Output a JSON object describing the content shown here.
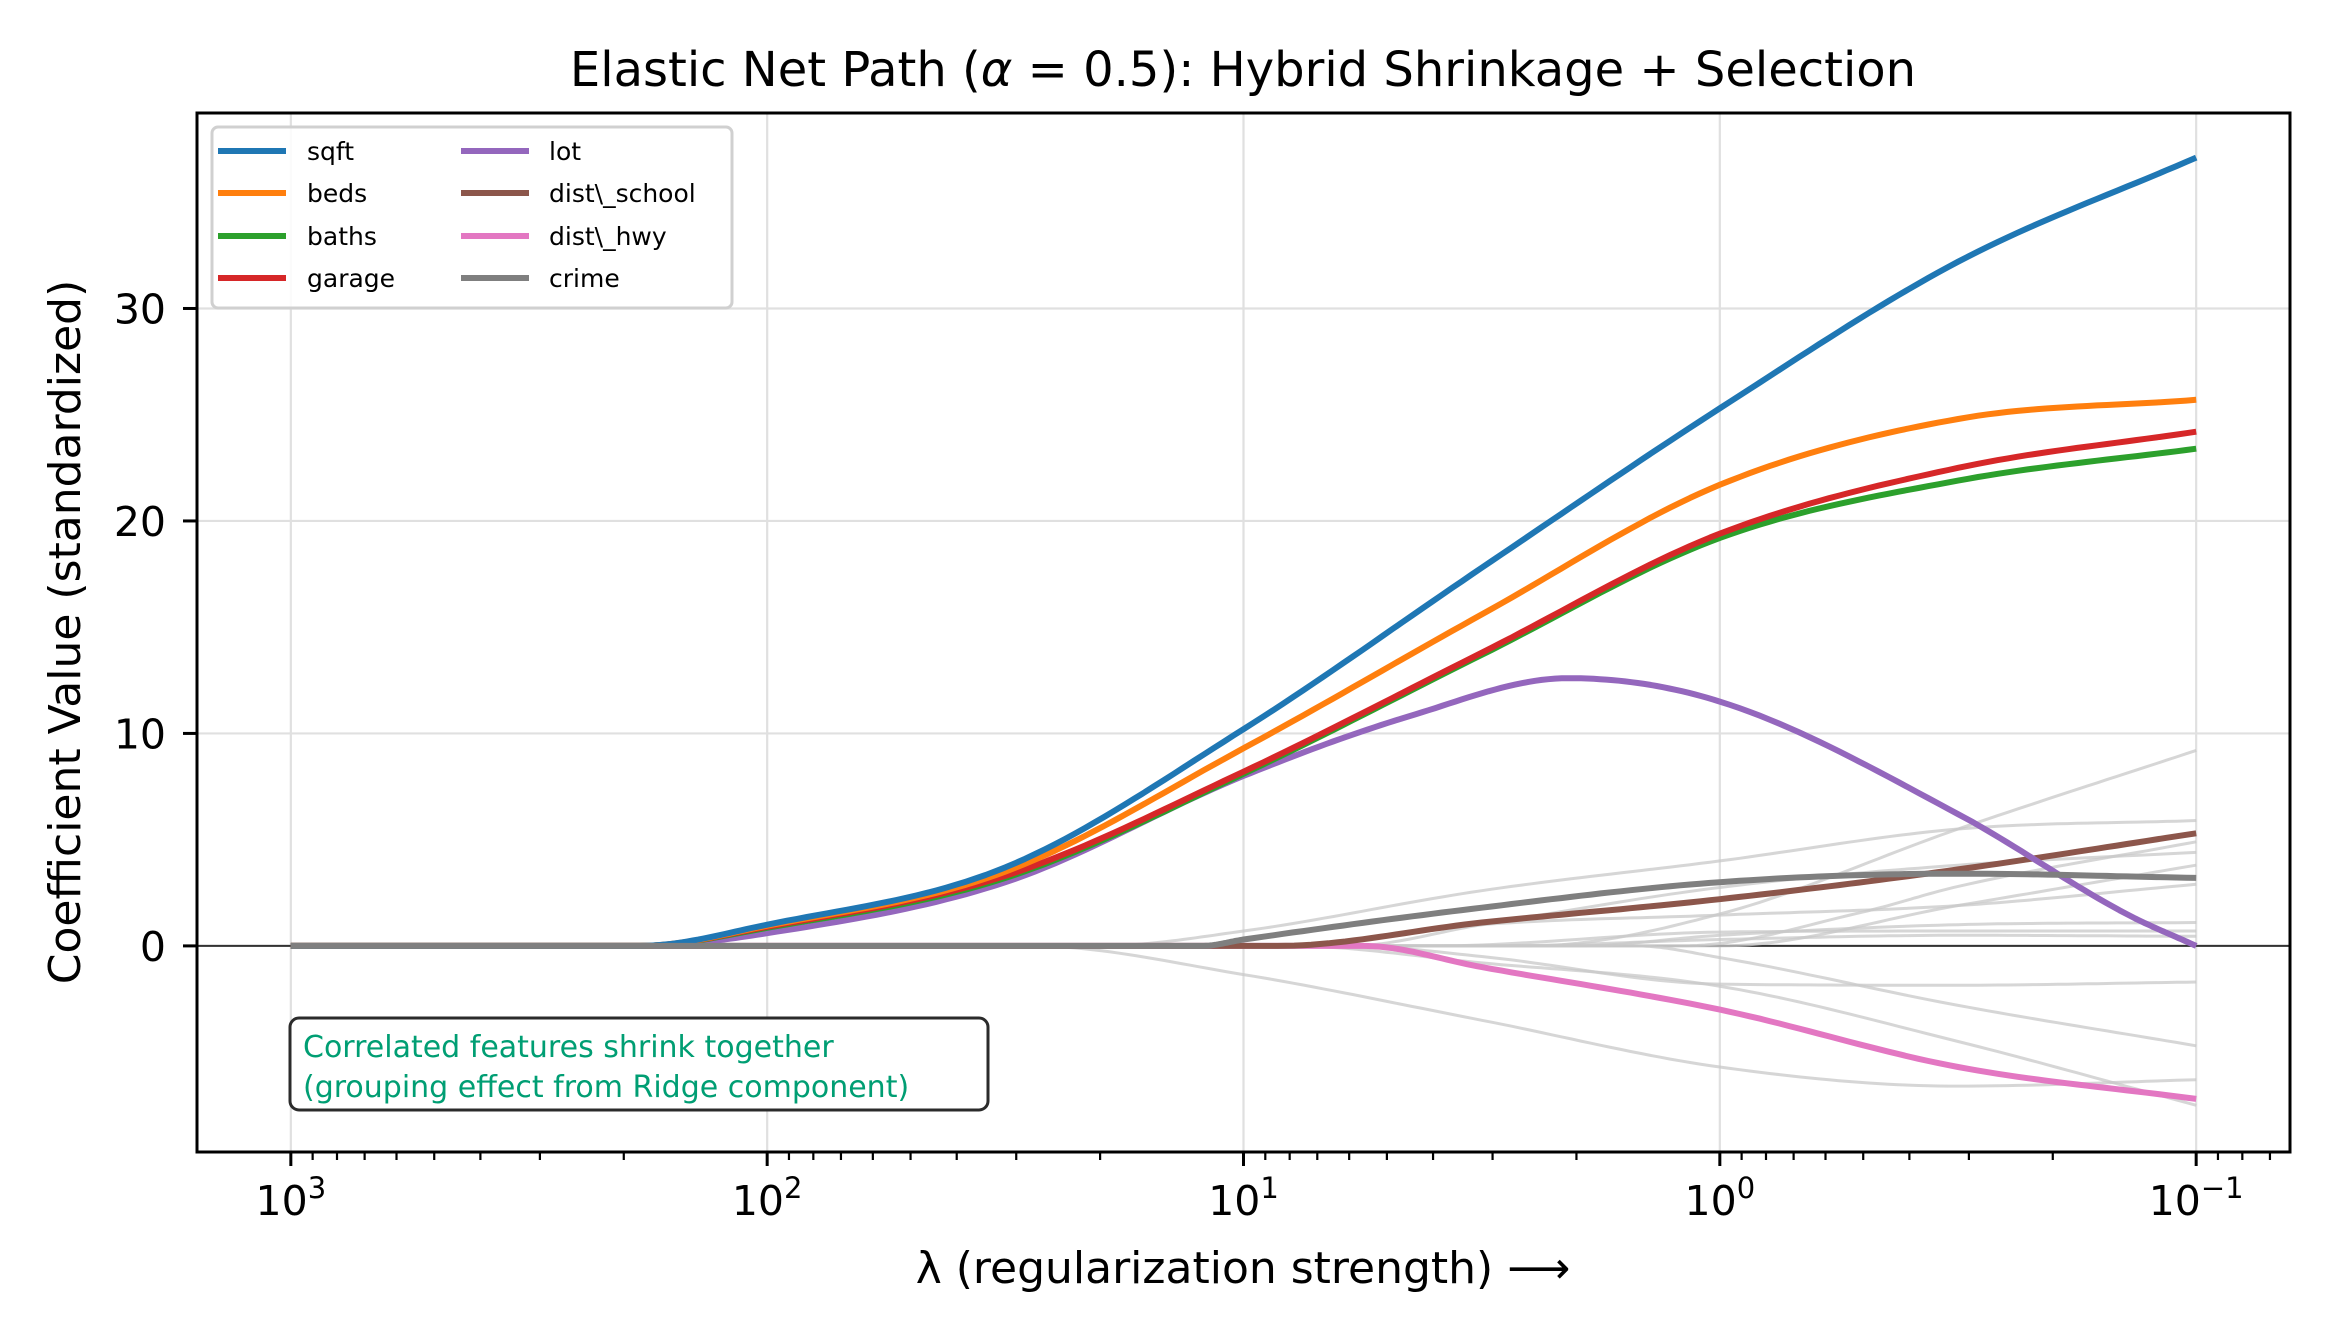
{
  "chart_data": {
    "type": "line",
    "title": "Elastic Net Path (α = 0.5): Hybrid Shrinkage + Selection",
    "title_parts": {
      "before": "Elastic Net Path (",
      "alpha": "α",
      "equals": " = 0.5",
      "after": "): Hybrid Shrinkage + Selection"
    },
    "xlabel": "λ (regularization strength)  ⟶",
    "ylabel": "Coefficient Value (standardized)",
    "xscale": "log",
    "x_inverted": true,
    "xlim_log10": [
      3.197,
      -1.197
    ],
    "ylim": [
      -9.7,
      39.2
    ],
    "grid": true,
    "zero_line": true,
    "legend_position": "upper-left",
    "legend_columns": 2,
    "xticks": [
      {
        "base": "10",
        "exp": "3",
        "value": 1000
      },
      {
        "base": "10",
        "exp": "2",
        "value": 100
      },
      {
        "base": "10",
        "exp": "1",
        "value": 10
      },
      {
        "base": "10",
        "exp": "0",
        "value": 1
      },
      {
        "base": "10",
        "exp": "−1",
        "value": 0.1
      }
    ],
    "yticks": [
      {
        "label": "0",
        "value": 0
      },
      {
        "label": "10",
        "value": 10
      },
      {
        "label": "20",
        "value": 20
      },
      {
        "label": "30",
        "value": 30
      }
    ],
    "series": [
      {
        "name": "sqft",
        "color": "#1f77b4",
        "points": [
          [
            1000,
            0
          ],
          [
            185,
            0
          ],
          [
            100,
            1.0
          ],
          [
            31.6,
            3.7
          ],
          [
            10,
            10.2
          ],
          [
            3.16,
            17.8
          ],
          [
            1,
            25.3
          ],
          [
            0.316,
            32.2
          ],
          [
            0.1,
            37.1
          ]
        ]
      },
      {
        "name": "beds",
        "color": "#ff7f0e",
        "points": [
          [
            1000,
            0
          ],
          [
            185,
            0
          ],
          [
            100,
            0.95
          ],
          [
            31.6,
            3.5
          ],
          [
            10,
            9.3
          ],
          [
            3.16,
            15.6
          ],
          [
            1,
            21.7
          ],
          [
            0.316,
            24.8
          ],
          [
            0.1,
            25.7
          ]
        ]
      },
      {
        "name": "baths",
        "color": "#2ca02c",
        "points": [
          [
            1000,
            0
          ],
          [
            185,
            0
          ],
          [
            100,
            0.85
          ],
          [
            31.6,
            3.2
          ],
          [
            10,
            8.1
          ],
          [
            3.16,
            13.7
          ],
          [
            1,
            19.2
          ],
          [
            0.316,
            21.9
          ],
          [
            0.1,
            23.4
          ]
        ]
      },
      {
        "name": "garage",
        "color": "#d62728",
        "points": [
          [
            1000,
            0
          ],
          [
            185,
            0
          ],
          [
            100,
            0.9
          ],
          [
            31.6,
            3.3
          ],
          [
            10,
            8.2
          ],
          [
            3.16,
            13.8
          ],
          [
            1,
            19.4
          ],
          [
            0.316,
            22.5
          ],
          [
            0.1,
            24.2
          ]
        ]
      },
      {
        "name": "lot",
        "color": "#9467bd",
        "points": [
          [
            1000,
            0
          ],
          [
            185,
            0
          ],
          [
            100,
            0.6
          ],
          [
            31.6,
            3.0
          ],
          [
            10,
            8.0
          ],
          [
            4.5,
            10.8
          ],
          [
            2.08,
            12.6
          ],
          [
            1,
            11.5
          ],
          [
            0.316,
            6.2
          ],
          [
            0.14,
            1.5
          ],
          [
            0.1,
            0
          ]
        ]
      },
      {
        "name": "dist\\_school",
        "color": "#8c564b",
        "points": [
          [
            1000,
            0
          ],
          [
            8.5,
            0
          ],
          [
            3.16,
            1.1
          ],
          [
            1,
            2.2
          ],
          [
            0.316,
            3.6
          ],
          [
            0.1,
            5.3
          ]
        ]
      },
      {
        "name": "dist\\_hwy",
        "color": "#e377c2",
        "points": [
          [
            1000,
            0
          ],
          [
            5.6,
            0
          ],
          [
            3.16,
            -1.0
          ],
          [
            1,
            -3.0
          ],
          [
            0.316,
            -5.7
          ],
          [
            0.1,
            -7.2
          ]
        ]
      },
      {
        "name": "crime",
        "color": "#7f7f7f",
        "points": [
          [
            1000,
            0
          ],
          [
            12.2,
            0
          ],
          [
            10,
            0.3
          ],
          [
            3.16,
            1.8
          ],
          [
            1,
            3.0
          ],
          [
            0.316,
            3.4
          ],
          [
            0.1,
            3.2
          ]
        ]
      }
    ],
    "background_series": [
      {
        "color": "#c8c8c8",
        "points": [
          [
            1000,
            0
          ],
          [
            2.5,
            0
          ],
          [
            1,
            1.5
          ],
          [
            0.316,
            5.5
          ],
          [
            0.1,
            9.2
          ]
        ]
      },
      {
        "color": "#c8c8c8",
        "points": [
          [
            1000,
            0
          ],
          [
            20,
            0
          ],
          [
            10,
            0.7
          ],
          [
            3.16,
            2.6
          ],
          [
            1,
            4.0
          ],
          [
            0.316,
            5.5
          ],
          [
            0.1,
            5.9
          ]
        ]
      },
      {
        "color": "#c8c8c8",
        "points": [
          [
            1000,
            0
          ],
          [
            1.2,
            0
          ],
          [
            0.5,
            1.6
          ],
          [
            0.316,
            2.8
          ],
          [
            0.1,
            4.9
          ]
        ]
      },
      {
        "color": "#c8c8c8",
        "points": [
          [
            1000,
            0
          ],
          [
            6,
            0
          ],
          [
            3.16,
            1.0
          ],
          [
            1,
            2.75
          ],
          [
            0.316,
            3.8
          ],
          [
            0.1,
            4.4
          ]
        ]
      },
      {
        "color": "#c8c8c8",
        "points": [
          [
            1000,
            0
          ],
          [
            1.0,
            0
          ],
          [
            0.316,
            1.9
          ],
          [
            0.1,
            3.8
          ]
        ]
      },
      {
        "color": "#c8c8c8",
        "points": [
          [
            1000,
            0
          ],
          [
            8,
            0
          ],
          [
            3.16,
            1.0
          ],
          [
            1,
            1.45
          ],
          [
            0.316,
            1.9
          ],
          [
            0.1,
            2.9
          ]
        ]
      },
      {
        "color": "#c8c8c8",
        "points": [
          [
            1000,
            0
          ],
          [
            2,
            0
          ],
          [
            1,
            0.5
          ],
          [
            0.316,
            1.0
          ],
          [
            0.1,
            1.1
          ]
        ]
      },
      {
        "color": "#c8c8c8",
        "points": [
          [
            1000,
            0
          ],
          [
            4,
            0
          ],
          [
            1,
            0.65
          ],
          [
            0.316,
            0.7
          ],
          [
            0.1,
            0.7
          ]
        ]
      },
      {
        "color": "#c8c8c8",
        "points": [
          [
            1000,
            0
          ],
          [
            3,
            0
          ],
          [
            1,
            0.3
          ],
          [
            0.316,
            0.5
          ],
          [
            0.1,
            0.45
          ]
        ]
      },
      {
        "color": "#c8c8c8",
        "points": [
          [
            1000,
            0
          ],
          [
            6,
            0
          ],
          [
            3.16,
            -0.5
          ],
          [
            1,
            -1.8
          ],
          [
            0.316,
            -1.85
          ],
          [
            0.1,
            -1.7
          ]
        ]
      },
      {
        "color": "#c8c8c8",
        "points": [
          [
            1000,
            0
          ],
          [
            1.5,
            0
          ],
          [
            1,
            -0.55
          ],
          [
            0.316,
            -2.8
          ],
          [
            0.1,
            -4.7
          ]
        ]
      },
      {
        "color": "#c8c8c8",
        "points": [
          [
            1000,
            0
          ],
          [
            8,
            0
          ],
          [
            3.16,
            -0.8
          ],
          [
            1,
            -1.9
          ],
          [
            0.316,
            -4.5
          ],
          [
            0.1,
            -7.5
          ]
        ]
      },
      {
        "color": "#c8c8c8",
        "points": [
          [
            1000,
            0
          ],
          [
            28,
            0
          ],
          [
            10,
            -1.35
          ],
          [
            3.16,
            -3.5
          ],
          [
            1,
            -5.7
          ],
          [
            0.316,
            -6.6
          ],
          [
            0.1,
            -6.3
          ]
        ]
      }
    ],
    "annotation": {
      "lines": [
        "Correlated features shrink together",
        "(grouping effect from Ridge component)"
      ],
      "color": "#009E73"
    }
  }
}
